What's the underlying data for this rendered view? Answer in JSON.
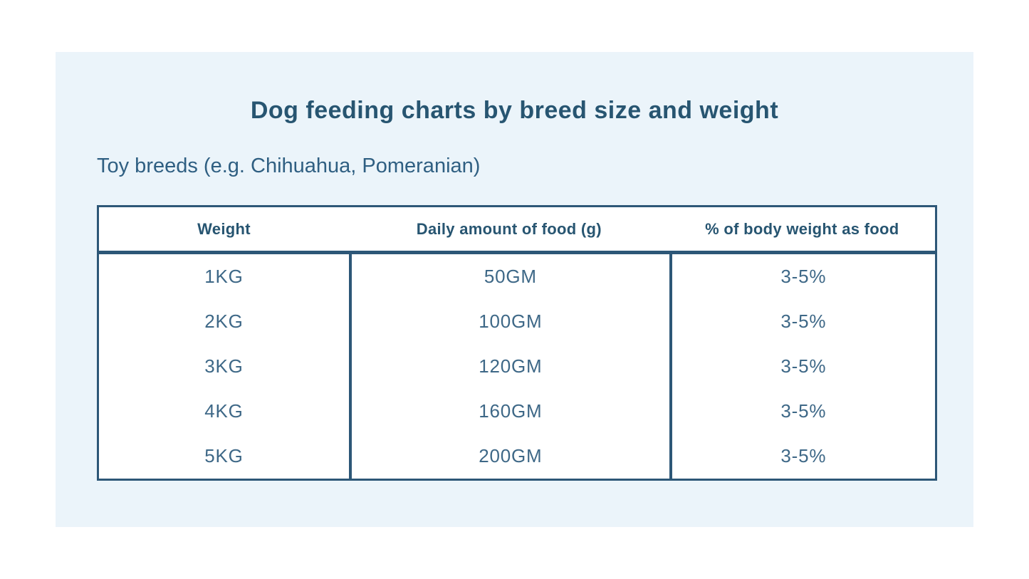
{
  "page": {
    "title": "Dog feeding charts by breed size and weight",
    "subtitle": "Toy breeds (e.g. Chihuahua, Pomeranian)"
  },
  "colors": {
    "panel_bg": "#ebf4fa",
    "table_border": "#2d5777",
    "heading_text": "#275571",
    "value_text": "#3e6887",
    "cell_bg": "#ffffff"
  },
  "table": {
    "headers": [
      "Weight",
      "Daily amount of food (g)",
      "% of body weight as food"
    ],
    "rows": [
      {
        "weight": "1KG",
        "daily_amount": "50GM",
        "body_weight_pct": "3-5%"
      },
      {
        "weight": "2KG",
        "daily_amount": "100GM",
        "body_weight_pct": "3-5%"
      },
      {
        "weight": "3KG",
        "daily_amount": "120GM",
        "body_weight_pct": "3-5%"
      },
      {
        "weight": "4KG",
        "daily_amount": "160GM",
        "body_weight_pct": "3-5%"
      },
      {
        "weight": "5KG",
        "daily_amount": "200GM",
        "body_weight_pct": "3-5%"
      }
    ]
  },
  "chart_data": {
    "type": "table",
    "title": "Dog feeding charts by breed size and weight",
    "subtitle": "Toy breeds (e.g. Chihuahua, Pomeranian)",
    "columns": [
      "Weight",
      "Daily amount of food (g)",
      "% of body weight as food"
    ],
    "rows": [
      [
        "1KG",
        "50GM",
        "3-5%"
      ],
      [
        "2KG",
        "100GM",
        "3-5%"
      ],
      [
        "3KG",
        "120GM",
        "3-5%"
      ],
      [
        "4KG",
        "160GM",
        "3-5%"
      ],
      [
        "5KG",
        "200GM",
        "3-5%"
      ]
    ]
  }
}
